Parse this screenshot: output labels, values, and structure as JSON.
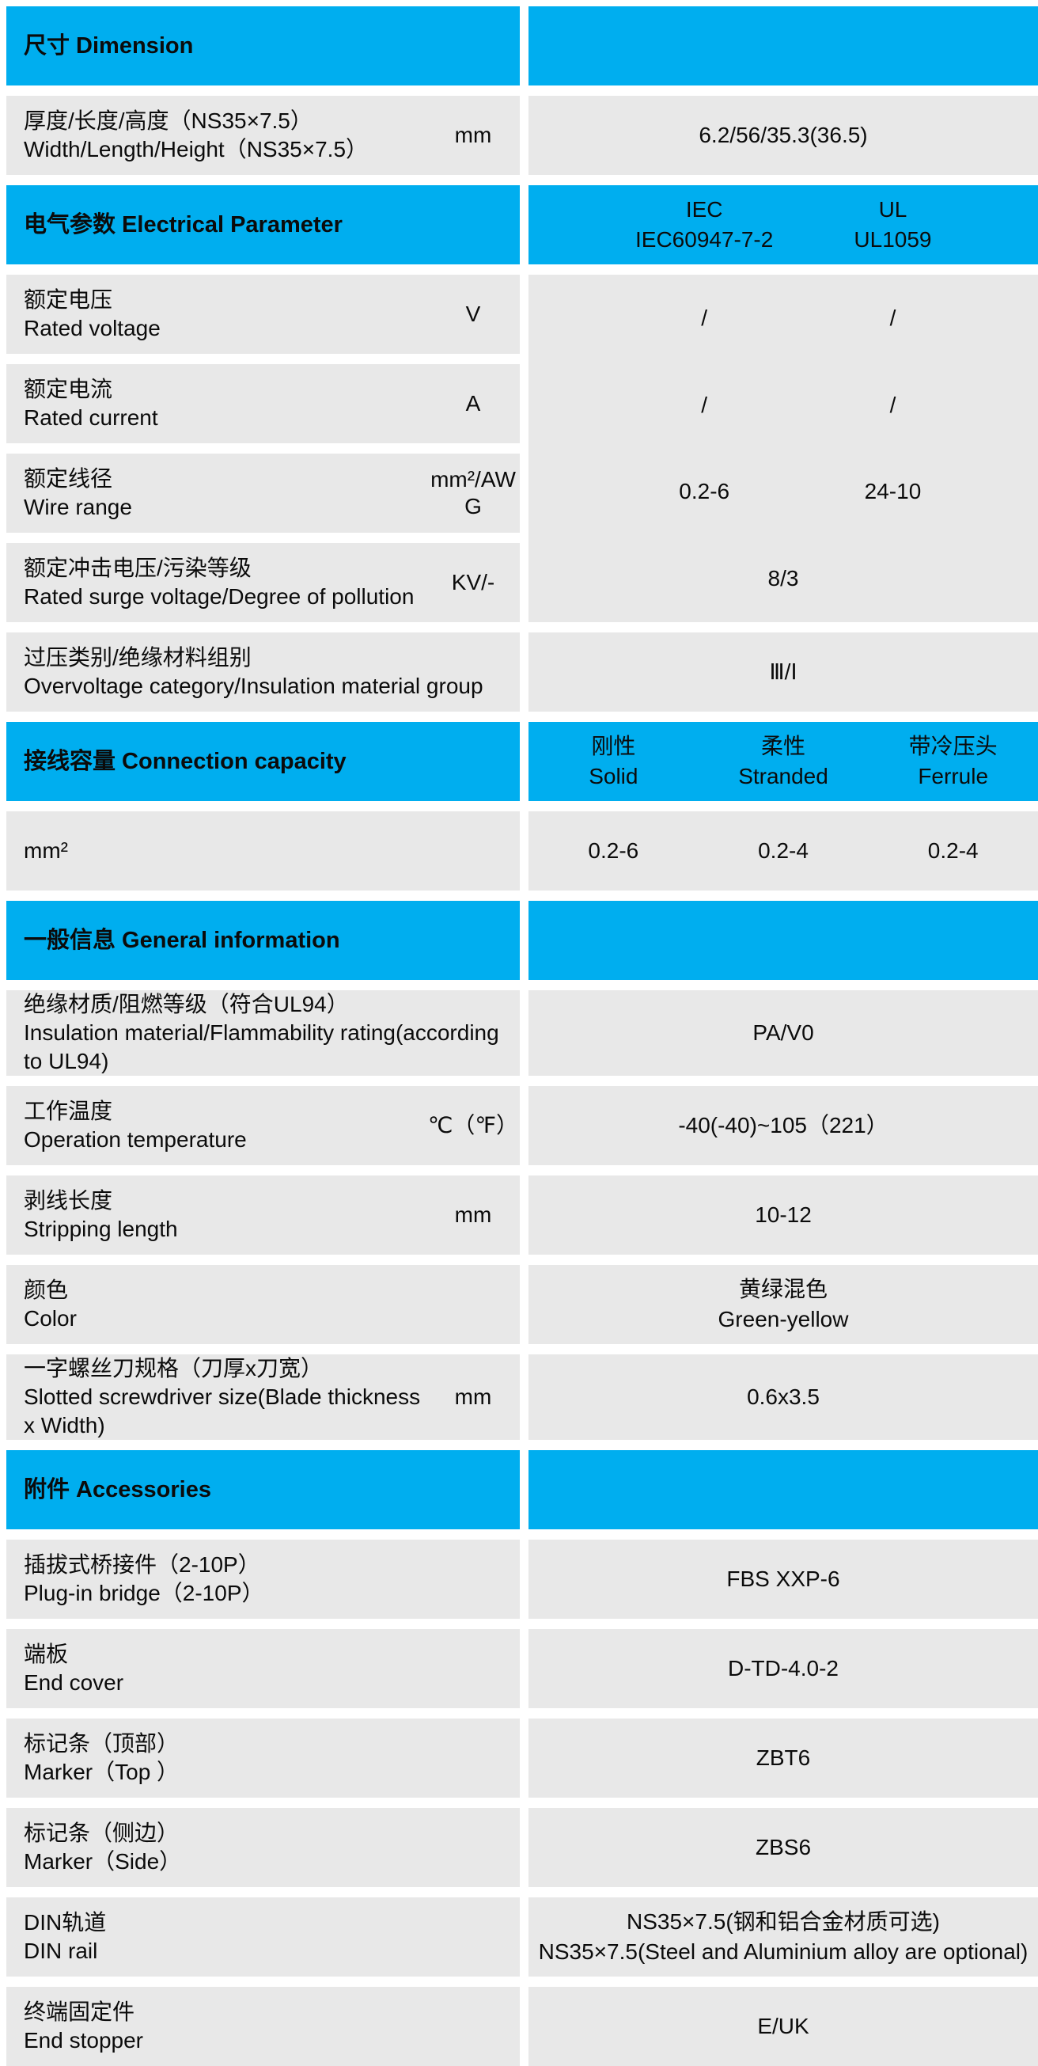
{
  "colors": {
    "accent_cyan": "#00AEEF",
    "row_gray": "#E8E8E8",
    "text": "#0b0b0b",
    "gap_white": "#ffffff"
  },
  "rows": {
    "dim_header": {
      "title": "尺寸 Dimension"
    },
    "whl": {
      "zh": "厚度/长度/高度（NS35×7.5）",
      "en": "Width/Length/Height（NS35×7.5）",
      "unit": "mm",
      "value": "6.2/56/35.3(36.5)"
    },
    "elec_header": {
      "title": "电气参数 Electrical Parameter",
      "iec_line1": "IEC",
      "iec_line2": "IEC60947-7-2",
      "ul_line1": "UL",
      "ul_line2": "UL1059"
    },
    "voltage": {
      "zh": "额定电压",
      "en": "Rated voltage",
      "unit": "V",
      "iec": "/",
      "ul": "/"
    },
    "current": {
      "zh": "额定电流",
      "en": "Rated current",
      "unit": "A",
      "iec": "/",
      "ul": "/"
    },
    "wire": {
      "zh": "额定线径",
      "en": "Wire range",
      "unit": "mm²/AWG",
      "iec": "0.2-6",
      "ul": "24-10"
    },
    "surge": {
      "zh": "额定冲击电压/污染等级",
      "en": "Rated surge voltage/Degree of pollution",
      "unit": "KV/-",
      "value": "8/3"
    },
    "overvoltage": {
      "zh": "过压类别/绝缘材料组别",
      "en": "Overvoltage category/Insulation material group",
      "value": "Ⅲ/Ⅰ"
    },
    "capacity_header": {
      "title": "接线容量 Connection capacity",
      "cols": [
        {
          "zh": "刚性",
          "en": "Solid"
        },
        {
          "zh": "柔性",
          "en": "Stranded"
        },
        {
          "zh": "带冷压头",
          "en": "Ferrule"
        }
      ]
    },
    "capacity_mm2": {
      "zh": "mm²",
      "values": [
        "0.2-6",
        "0.2-4",
        "0.2-4"
      ]
    },
    "general_header": {
      "title": "一般信息 General information"
    },
    "insulation": {
      "zh": "绝缘材质/阻燃等级（符合UL94）",
      "en": "Insulation material/Flammability rating(according to UL94)",
      "value": "PA/V0"
    },
    "temperature": {
      "zh": "工作温度",
      "en": "Operation temperature",
      "unit": "℃（℉）",
      "value": "-40(-40)~105（221）"
    },
    "stripping": {
      "zh": "剥线长度",
      "en": "Stripping length",
      "unit": "mm",
      "value": "10-12"
    },
    "color": {
      "zh": "颜色",
      "en": "Color",
      "value_zh": "黄绿混色",
      "value_en": "Green-yellow"
    },
    "screwdriver": {
      "zh": "一字螺丝刀规格（刀厚x刀宽）",
      "en": "Slotted screwdriver size(Blade thickness x Width)",
      "unit": "mm",
      "value": "0.6x3.5"
    },
    "accessories_header": {
      "title": "附件 Accessories"
    },
    "bridge": {
      "zh": "插拔式桥接件（2-10P）",
      "en": "Plug-in bridge（2-10P）",
      "value": "FBS XXP-6"
    },
    "endcover": {
      "zh": "端板",
      "en": "End cover",
      "value": "D-TD-4.0-2"
    },
    "marker_top": {
      "zh": "标记条（顶部）",
      "en": "Marker（Top ）",
      "value": "ZBT6"
    },
    "marker_side": {
      "zh": "标记条（侧边）",
      "en": "Marker（Side）",
      "value": "ZBS6"
    },
    "din_rail": {
      "zh": "DIN轨道",
      "en": "DIN rail",
      "value_zh": "NS35×7.5(钢和铝合金材质可选)",
      "value_en": "NS35×7.5(Steel and Aluminium alloy are optional)"
    },
    "end_stopper": {
      "zh": "终端固定件",
      "en": "End stopper",
      "value": "E/UK"
    }
  }
}
